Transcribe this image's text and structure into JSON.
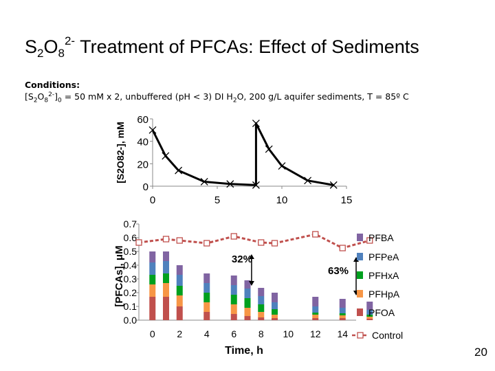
{
  "slide": {
    "title_prefix": "S",
    "title_sub1": "2",
    "title_mid": "O",
    "title_sub2": "8",
    "title_sup": "2-",
    "title_rest": " Treatment of PFCAs: Effect of Sediments",
    "conditions_heading": "Conditions:",
    "cond_part1": "[S",
    "cond_sub1": "2",
    "cond_part2": "O",
    "cond_sub2": "8",
    "cond_sup": "2-",
    "cond_part3": "]",
    "cond_sub3": "0",
    "cond_part4": " = 50 mM x 2, unbuffered (pH < 3) DI H",
    "cond_sub4": "2",
    "cond_part5": "O, 200 g/L aquifer sediments, T = 85º C",
    "page_number": "20"
  },
  "colors": {
    "PFBA": "#8064a2",
    "PFPeA": "#4f81bd",
    "PFHxA": "#00a01e",
    "PFHpA": "#f79646",
    "PFOA": "#c0504d",
    "control": "#c0504d",
    "line": "#000000"
  },
  "chart_data": [
    {
      "type": "line",
      "ylabel": "[S2O82-], mM",
      "xlim": [
        0,
        15
      ],
      "ylim": [
        0,
        60
      ],
      "x_ticks": [
        0,
        5,
        10,
        15
      ],
      "y_ticks": [
        0,
        20,
        40,
        60
      ],
      "marker": "x",
      "x": [
        0,
        1,
        2,
        4,
        6,
        8,
        8,
        9,
        10,
        12,
        14
      ],
      "y": [
        50,
        27,
        14,
        4,
        2,
        1,
        56,
        33,
        18,
        5,
        1
      ]
    },
    {
      "type": "bar",
      "stacked": true,
      "ylabel": "[PFCAs], μM",
      "xlabel": "Time, h",
      "xlim": [
        -1,
        15
      ],
      "ylim": [
        0,
        0.7
      ],
      "x_ticks": [
        0,
        2,
        4,
        6,
        8,
        10,
        12,
        14
      ],
      "y_ticks": [
        "0.0",
        "0.1",
        "0.2",
        "0.3",
        "0.4",
        "0.5",
        "0.6",
        "0.7"
      ],
      "legend_position": "right",
      "categories": [
        0,
        1,
        2,
        4,
        6,
        7,
        8,
        9,
        12,
        14,
        16
      ],
      "series": [
        {
          "name": "PFOA",
          "values": [
            0.17,
            0.17,
            0.1,
            0.06,
            0.045,
            0.03,
            0.02,
            0.015,
            0.015,
            0.015,
            0.01
          ]
        },
        {
          "name": "PFHp.A",
          "values": [
            0.09,
            0.1,
            0.08,
            0.07,
            0.07,
            0.06,
            0.04,
            0.025,
            0.025,
            0.02,
            0.015
          ]
        },
        {
          "name": "PFHx.A",
          "values": [
            0.07,
            0.07,
            0.07,
            0.07,
            0.07,
            0.07,
            0.055,
            0.04,
            0.015,
            0.015,
            0.015
          ]
        },
        {
          "name": "PFPe.A",
          "values": [
            0.09,
            0.09,
            0.08,
            0.07,
            0.07,
            0.07,
            0.06,
            0.05,
            0.045,
            0.04,
            0.035
          ]
        },
        {
          "name": "PFBA",
          "values": [
            0.08,
            0.07,
            0.07,
            0.07,
            0.07,
            0.06,
            0.06,
            0.07,
            0.07,
            0.065,
            0.06
          ]
        }
      ],
      "control": {
        "name": "Control",
        "x": [
          -1,
          1,
          2,
          4,
          6,
          8,
          9,
          12,
          14,
          16
        ],
        "y": [
          0.565,
          0.59,
          0.58,
          0.56,
          0.61,
          0.565,
          0.56,
          0.625,
          0.525,
          0.58
        ]
      },
      "annotations": [
        {
          "text": "32%",
          "x": 7.3,
          "y_from": 0.25,
          "y_to": 0.48
        },
        {
          "text": "63%",
          "x": 15.0,
          "y_from": 0.18,
          "y_to": 0.46
        }
      ],
      "legend": [
        "PFBA",
        "PFPe.A",
        "PFHx.A",
        "PFHp.A",
        "PFOA",
        "Control"
      ]
    }
  ]
}
